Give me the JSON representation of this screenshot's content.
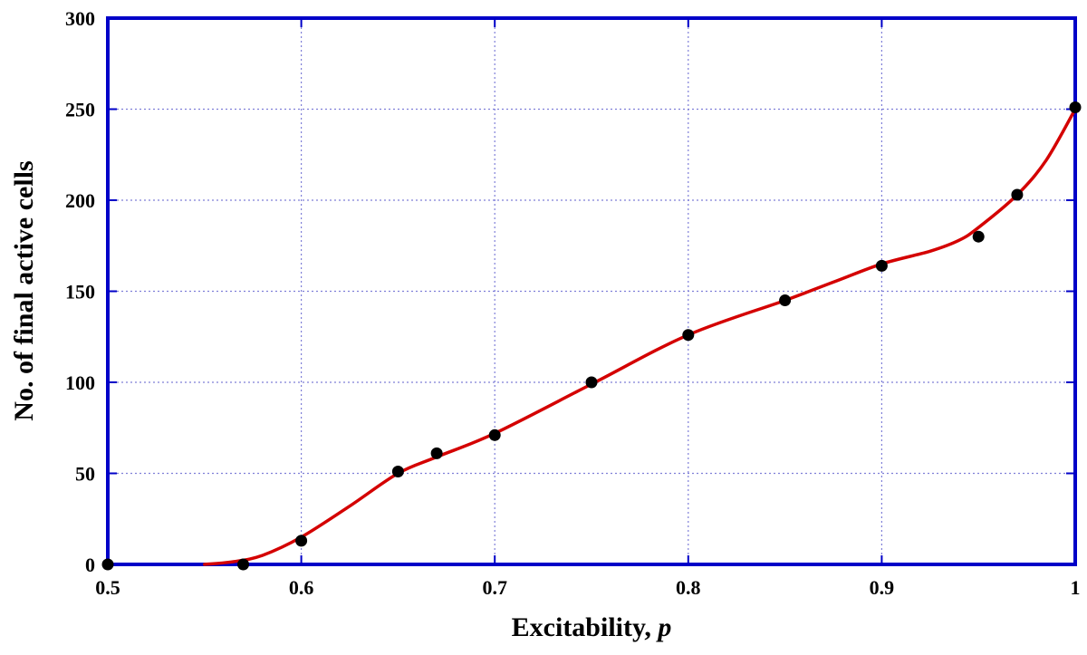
{
  "chart_data": {
    "type": "scatter",
    "xlabel": "Excitability, ",
    "xlabel_var": "p",
    "ylabel": "No. of final active cells",
    "xlim": [
      0.5,
      1.0
    ],
    "ylim": [
      0,
      300
    ],
    "xticks": [
      "0.5",
      "0.6",
      "0.7",
      "0.8",
      "0.9",
      "1"
    ],
    "yticks": [
      "0",
      "50",
      "100",
      "150",
      "200",
      "250",
      "300"
    ],
    "grid": true,
    "colors": {
      "frame": "#0000c8",
      "grid": "#7f7fd8",
      "curve": "#d40000",
      "points": "#000000"
    },
    "series": [
      {
        "kind": "points",
        "x": [
          0.5,
          0.57,
          0.6,
          0.65,
          0.67,
          0.7,
          0.75,
          0.8,
          0.85,
          0.9,
          0.95,
          0.97,
          1.0
        ],
        "y": [
          0,
          0,
          13,
          51,
          61,
          71,
          100,
          126,
          145,
          164,
          180,
          203,
          251
        ]
      },
      {
        "kind": "fit-curve",
        "x": [
          0.55,
          0.565,
          0.58,
          0.6,
          0.625,
          0.65,
          0.67,
          0.7,
          0.75,
          0.8,
          0.85,
          0.875,
          0.9,
          0.925,
          0.94,
          0.95,
          0.97,
          0.985,
          1.0
        ],
        "y": [
          0,
          1.5,
          5,
          15,
          32,
          50,
          59,
          72,
          99,
          126,
          145,
          155,
          165,
          172,
          178,
          185,
          203,
          222,
          250
        ]
      }
    ]
  }
}
